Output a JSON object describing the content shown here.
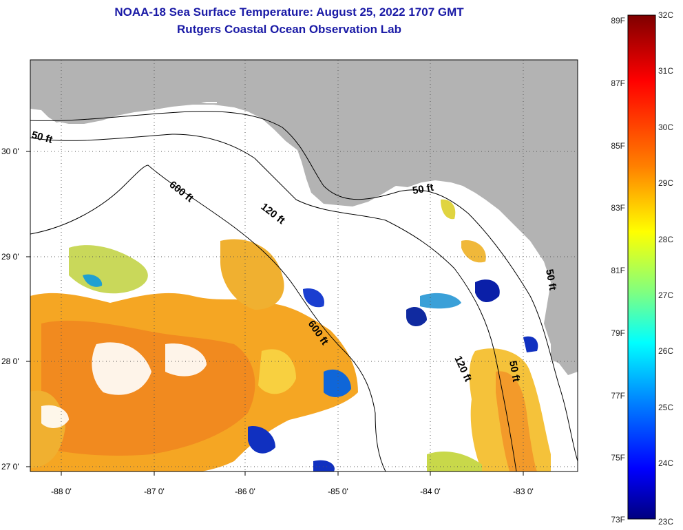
{
  "header": {
    "title_line1": "NOAA-18 Sea Surface Temperature:  August 25, 2022 1707 GMT",
    "title_line2": "Rutgers Coastal Ocean Observation Lab"
  },
  "map": {
    "lat_labels": [
      "30 0'",
      "29 0'",
      "28 0'",
      "27 0'"
    ],
    "lon_labels": [
      "-88 0'",
      "-87 0'",
      "-86 0'",
      "-85 0'",
      "-84 0'",
      "-83 0'"
    ],
    "depth_labels": [
      "50 ft",
      "600 ft",
      "120 ft",
      "50 ft",
      "600 ft",
      "120 ft",
      "50 ft",
      "50 ft"
    ],
    "colors": {
      "land": "#b3b3b3",
      "ocean": "#ffffff",
      "contour": "#000000"
    }
  },
  "colorbar": {
    "fahrenheit_labels": [
      "89F",
      "87F",
      "85F",
      "83F",
      "81F",
      "79F",
      "77F",
      "75F",
      "73F"
    ],
    "celsius_labels": [
      "32C",
      "31C",
      "30C",
      "29C",
      "28C",
      "27C",
      "26C",
      "25C",
      "24C",
      "23C"
    ],
    "stops": [
      "#7f0000",
      "#ff0000",
      "#ff8000",
      "#ffff00",
      "#80ff80",
      "#00ffff",
      "#0080ff",
      "#0000ff",
      "#00007f"
    ]
  }
}
